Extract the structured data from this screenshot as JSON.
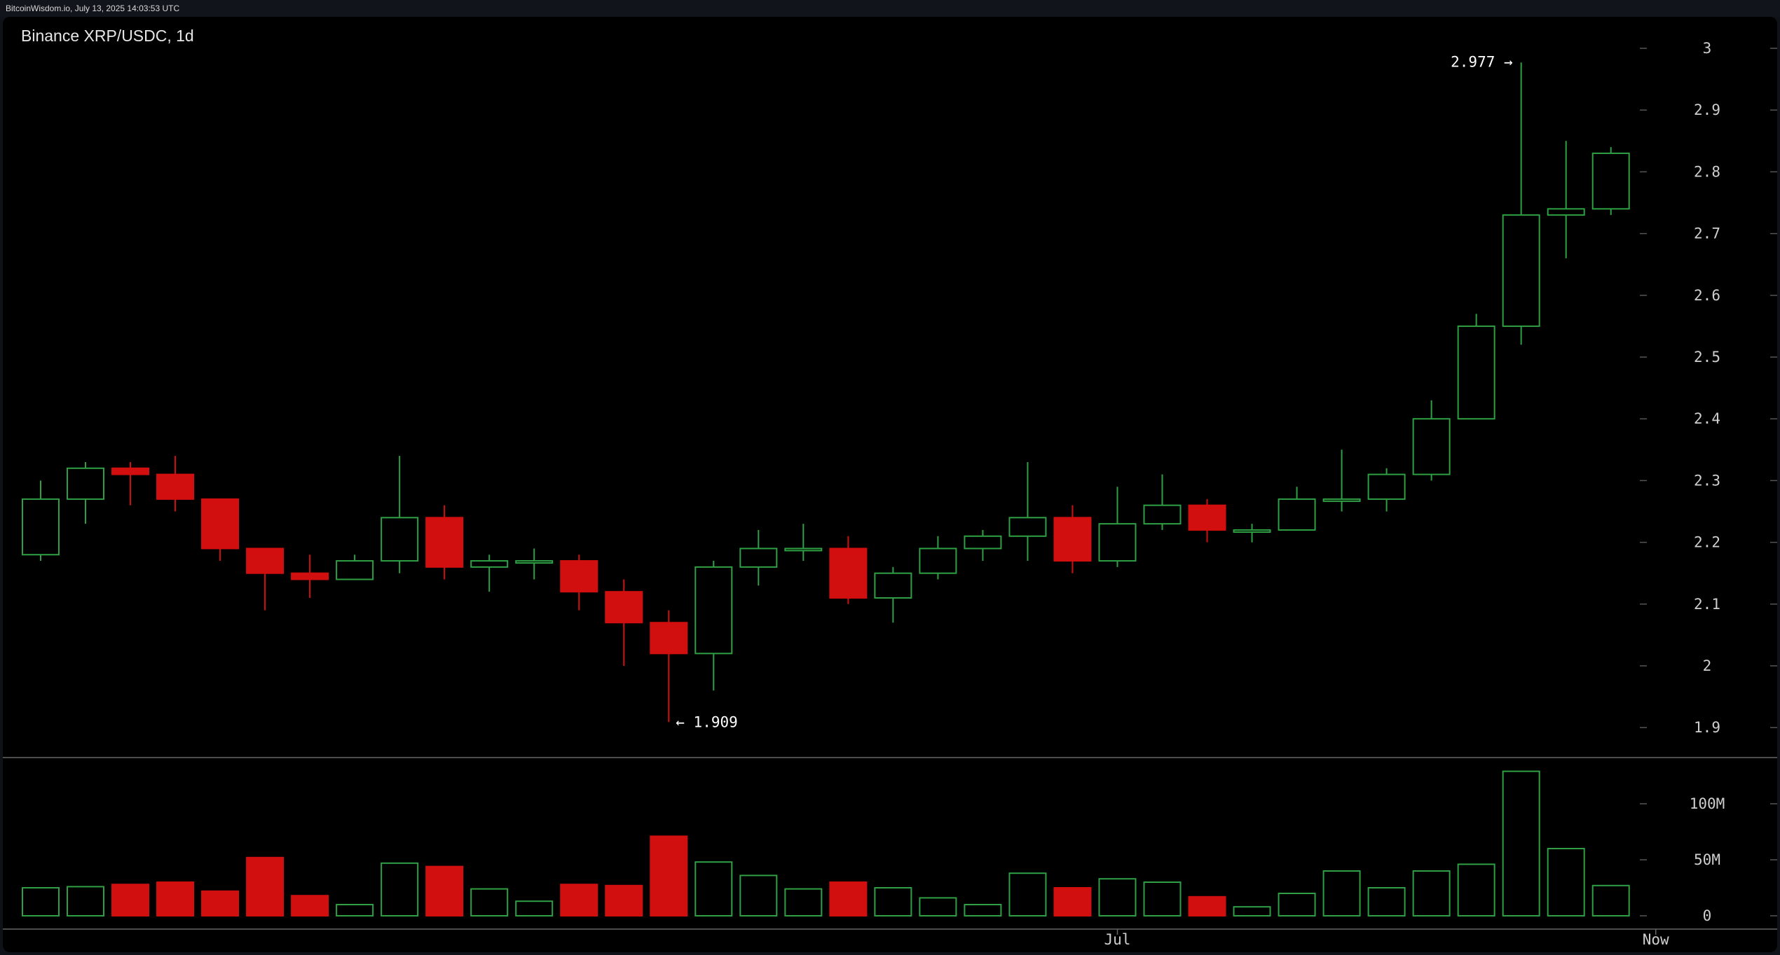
{
  "header": {
    "source": "BitcoinWisdom.io, July 13, 2025 14:03:53 UTC",
    "symbol": "Binance XRP/USDC, 1d"
  },
  "colors": {
    "up": "#2ea043",
    "down": "#d20f0f",
    "axis_line": "#666666",
    "grid_tick": "#555555"
  },
  "annotations": {
    "high_label": "2.977 →",
    "low_label": "← 1.909"
  },
  "chart_data": {
    "type": "candlestick",
    "title": "Binance XRP/USDC, 1d",
    "price_axis": {
      "range": [
        1.87,
        3.02
      ],
      "ticks": [
        "3",
        "2.9",
        "2.8",
        "2.7",
        "2.6",
        "2.5",
        "2.4",
        "2.3",
        "2.2",
        "2.1",
        "2",
        "1.9"
      ]
    },
    "volume_axis": {
      "range": [
        0,
        140
      ],
      "unit": "M",
      "ticks": [
        "100M",
        "50M",
        "0"
      ]
    },
    "x_labels": [
      {
        "label": "Jul",
        "index": 24
      },
      {
        "label": "Now",
        "index": 36
      }
    ],
    "high": {
      "value": 2.977,
      "index": 33
    },
    "low": {
      "value": 1.909,
      "index": 14
    },
    "candles": [
      {
        "o": 2.18,
        "h": 2.3,
        "l": 2.17,
        "c": 2.27,
        "v": 25
      },
      {
        "o": 2.27,
        "h": 2.33,
        "l": 2.23,
        "c": 2.32,
        "v": 26
      },
      {
        "o": 2.32,
        "h": 2.33,
        "l": 2.26,
        "c": 2.31,
        "v": 28
      },
      {
        "o": 2.31,
        "h": 2.34,
        "l": 2.25,
        "c": 2.27,
        "v": 30
      },
      {
        "o": 2.27,
        "h": 2.27,
        "l": 2.17,
        "c": 2.19,
        "v": 22
      },
      {
        "o": 2.19,
        "h": 2.19,
        "l": 2.09,
        "c": 2.15,
        "v": 52
      },
      {
        "o": 2.15,
        "h": 2.18,
        "l": 2.11,
        "c": 2.14,
        "v": 18
      },
      {
        "o": 2.14,
        "h": 2.18,
        "l": 2.14,
        "c": 2.17,
        "v": 10
      },
      {
        "o": 2.17,
        "h": 2.34,
        "l": 2.15,
        "c": 2.24,
        "v": 47
      },
      {
        "o": 2.24,
        "h": 2.26,
        "l": 2.14,
        "c": 2.16,
        "v": 44
      },
      {
        "o": 2.16,
        "h": 2.18,
        "l": 2.12,
        "c": 2.17,
        "v": 24
      },
      {
        "o": 2.17,
        "h": 2.19,
        "l": 2.14,
        "c": 2.17,
        "v": 13
      },
      {
        "o": 2.17,
        "h": 2.18,
        "l": 2.09,
        "c": 2.12,
        "v": 28
      },
      {
        "o": 2.12,
        "h": 2.14,
        "l": 2.0,
        "c": 2.07,
        "v": 27
      },
      {
        "o": 2.07,
        "h": 2.09,
        "l": 1.909,
        "c": 2.02,
        "v": 71
      },
      {
        "o": 2.02,
        "h": 2.17,
        "l": 1.96,
        "c": 2.16,
        "v": 48
      },
      {
        "o": 2.16,
        "h": 2.22,
        "l": 2.13,
        "c": 2.19,
        "v": 36
      },
      {
        "o": 2.19,
        "h": 2.23,
        "l": 2.17,
        "c": 2.19,
        "v": 24
      },
      {
        "o": 2.19,
        "h": 2.21,
        "l": 2.1,
        "c": 2.11,
        "v": 30
      },
      {
        "o": 2.11,
        "h": 2.16,
        "l": 2.07,
        "c": 2.15,
        "v": 25
      },
      {
        "o": 2.15,
        "h": 2.21,
        "l": 2.14,
        "c": 2.19,
        "v": 16
      },
      {
        "o": 2.19,
        "h": 2.22,
        "l": 2.17,
        "c": 2.21,
        "v": 10
      },
      {
        "o": 2.21,
        "h": 2.33,
        "l": 2.17,
        "c": 2.24,
        "v": 38
      },
      {
        "o": 2.24,
        "h": 2.26,
        "l": 2.15,
        "c": 2.17,
        "v": 25
      },
      {
        "o": 2.17,
        "h": 2.29,
        "l": 2.16,
        "c": 2.23,
        "v": 33
      },
      {
        "o": 2.23,
        "h": 2.31,
        "l": 2.22,
        "c": 2.26,
        "v": 30
      },
      {
        "o": 2.26,
        "h": 2.27,
        "l": 2.2,
        "c": 2.22,
        "v": 17
      },
      {
        "o": 2.22,
        "h": 2.23,
        "l": 2.2,
        "c": 2.22,
        "v": 8
      },
      {
        "o": 2.22,
        "h": 2.29,
        "l": 2.22,
        "c": 2.27,
        "v": 20
      },
      {
        "o": 2.27,
        "h": 2.35,
        "l": 2.25,
        "c": 2.27,
        "v": 40
      },
      {
        "o": 2.27,
        "h": 2.32,
        "l": 2.25,
        "c": 2.31,
        "v": 25
      },
      {
        "o": 2.31,
        "h": 2.43,
        "l": 2.3,
        "c": 2.4,
        "v": 40
      },
      {
        "o": 2.4,
        "h": 2.57,
        "l": 2.4,
        "c": 2.55,
        "v": 46
      },
      {
        "o": 2.55,
        "h": 2.977,
        "l": 2.52,
        "c": 2.73,
        "v": 129
      },
      {
        "o": 2.73,
        "h": 2.85,
        "l": 2.66,
        "c": 2.74,
        "v": 60
      },
      {
        "o": 2.74,
        "h": 2.84,
        "l": 2.73,
        "c": 2.83,
        "v": 27
      }
    ]
  }
}
